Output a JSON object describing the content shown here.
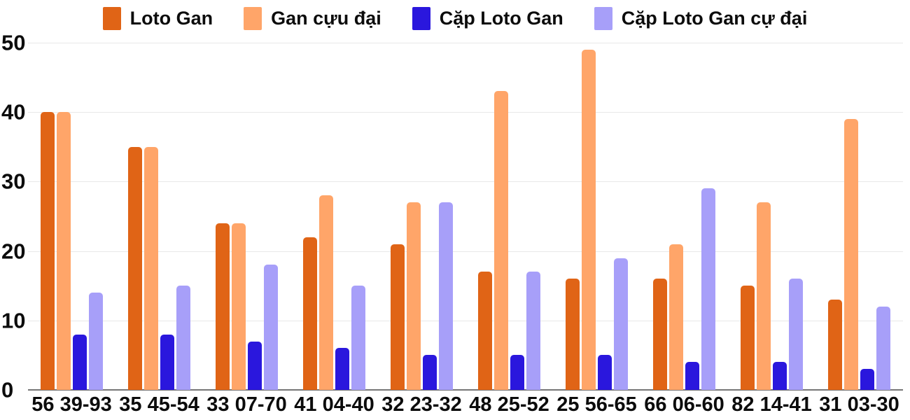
{
  "chart_data": {
    "type": "bar",
    "title": "",
    "xlabel": "",
    "ylabel": "",
    "categories": [
      "56 39-93",
      "35 45-54",
      "33 07-70",
      "41 04-40",
      "32 23-32",
      "48 25-52",
      "25 56-65",
      "66 06-60",
      "82 14-41",
      "31 03-30"
    ],
    "series": [
      {
        "name": "Loto Gan",
        "color": "#E06416",
        "values": [
          40,
          35,
          24,
          22,
          21,
          17,
          16,
          16,
          15,
          13
        ]
      },
      {
        "name": "Gan cựu đại",
        "color": "#FFA569",
        "values": [
          40,
          35,
          24,
          28,
          27,
          43,
          49,
          21,
          27,
          39
        ]
      },
      {
        "name": "Cặp Loto Gan",
        "color": "#2A17DD",
        "values": [
          8,
          8,
          7,
          6,
          5,
          5,
          5,
          4,
          4,
          3
        ]
      },
      {
        "name": "Cặp Loto Gan cự đại",
        "color": "#A79FF9",
        "values": [
          14,
          15,
          18,
          15,
          27,
          17,
          19,
          29,
          16,
          12
        ]
      }
    ],
    "ylim": [
      0,
      50
    ],
    "yticks": [
      0,
      10,
      20,
      30,
      40,
      50
    ],
    "grid": true,
    "legend_position": "top",
    "background_color": "#ffffff",
    "gridline_color": "#e8e8e8",
    "axis_color": "#767676",
    "label_color": "#0c0c0c"
  }
}
